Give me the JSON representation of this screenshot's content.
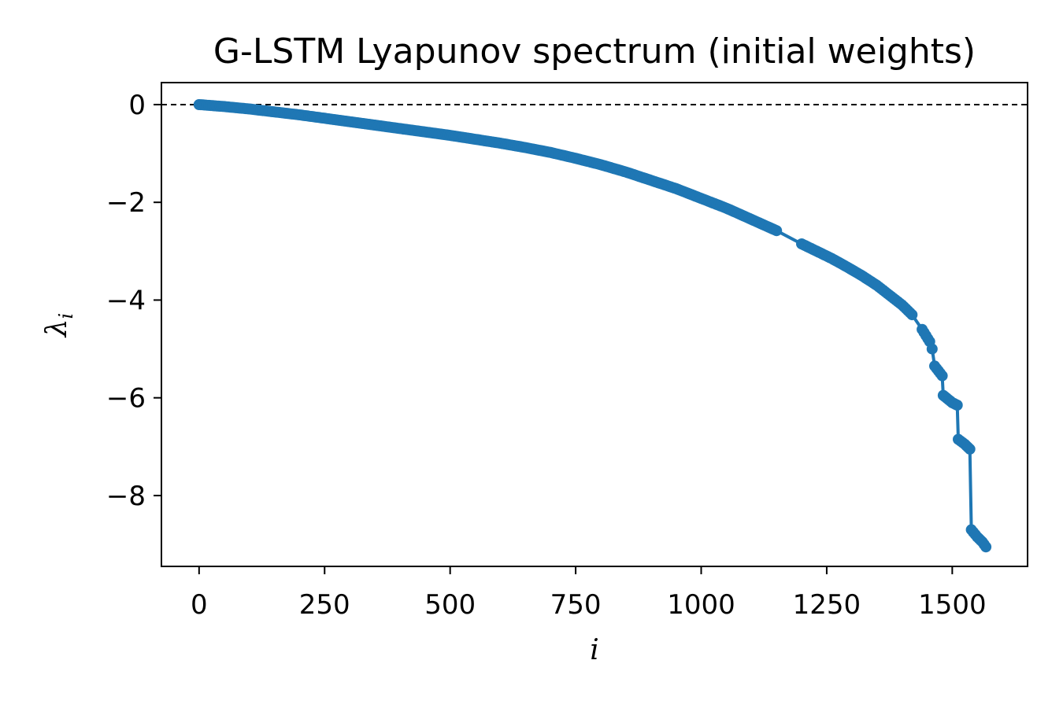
{
  "chart_data": {
    "type": "line",
    "title": "G-LSTM Lyapunov spectrum (initial weights)",
    "xlabel": "i",
    "ylabel": "λ_i",
    "xlim": [
      -75,
      1650
    ],
    "ylim": [
      -9.45,
      0.45
    ],
    "xticks": [
      0,
      250,
      500,
      750,
      1000,
      1250,
      1500
    ],
    "yticks": [
      0,
      -2,
      -4,
      -6,
      -8
    ],
    "ytick_labels": [
      "0",
      "−2",
      "−4",
      "−6",
      "−8"
    ],
    "reference_line": {
      "y": 0,
      "style": "dashed",
      "color": "#000000"
    },
    "series": [
      {
        "color": "#1f77b4",
        "marker": "circle",
        "points": [
          [
            0,
            0.0
          ],
          [
            50,
            -0.04
          ],
          [
            100,
            -0.09
          ],
          [
            150,
            -0.15
          ],
          [
            200,
            -0.21
          ],
          [
            250,
            -0.28
          ],
          [
            300,
            -0.35
          ],
          [
            350,
            -0.42
          ],
          [
            400,
            -0.49
          ],
          [
            450,
            -0.56
          ],
          [
            500,
            -0.63
          ],
          [
            550,
            -0.71
          ],
          [
            600,
            -0.79
          ],
          [
            650,
            -0.88
          ],
          [
            700,
            -0.98
          ],
          [
            750,
            -1.1
          ],
          [
            800,
            -1.23
          ],
          [
            850,
            -1.38
          ],
          [
            900,
            -1.55
          ],
          [
            950,
            -1.72
          ],
          [
            1000,
            -1.92
          ],
          [
            1050,
            -2.12
          ],
          [
            1100,
            -2.35
          ],
          [
            1150,
            -2.58
          ],
          [
            1200,
            -2.85
          ],
          [
            1230,
            -3.0
          ],
          [
            1260,
            -3.15
          ],
          [
            1290,
            -3.32
          ],
          [
            1320,
            -3.5
          ],
          [
            1350,
            -3.7
          ],
          [
            1375,
            -3.9
          ],
          [
            1400,
            -4.1
          ],
          [
            1420,
            -4.3
          ],
          [
            1440,
            -4.6
          ],
          [
            1455,
            -4.85
          ],
          [
            1460,
            -5.0
          ],
          [
            1465,
            -5.35
          ],
          [
            1480,
            -5.55
          ],
          [
            1482,
            -5.95
          ],
          [
            1500,
            -6.1
          ],
          [
            1510,
            -6.15
          ],
          [
            1512,
            -6.85
          ],
          [
            1525,
            -6.95
          ],
          [
            1535,
            -7.05
          ],
          [
            1538,
            -8.7
          ],
          [
            1550,
            -8.85
          ],
          [
            1560,
            -8.95
          ],
          [
            1567,
            -9.05
          ]
        ]
      }
    ],
    "grid": false,
    "legend": "none"
  }
}
